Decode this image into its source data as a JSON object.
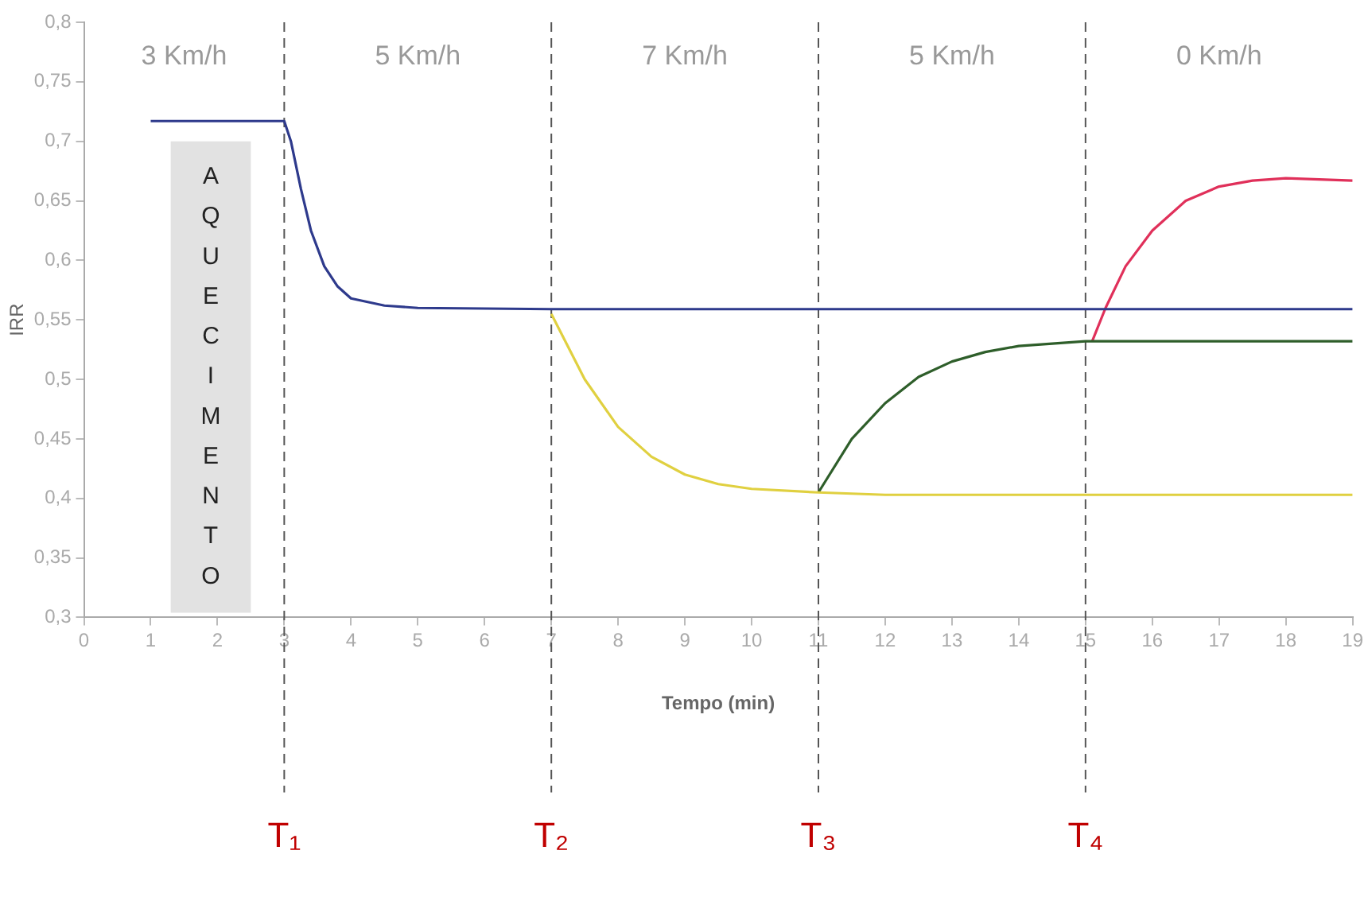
{
  "chart_data": {
    "type": "line",
    "xlabel": "Tempo (min)",
    "ylabel": "IRR",
    "xlim": [
      0,
      19
    ],
    "xticks": [
      0,
      1,
      2,
      3,
      4,
      5,
      6,
      7,
      8,
      9,
      10,
      11,
      12,
      13,
      14,
      15,
      16,
      17,
      18,
      19
    ],
    "ylim": [
      0.3,
      0.8
    ],
    "yticks": [
      {
        "value": 0.3,
        "label": "0,3"
      },
      {
        "value": 0.35,
        "label": "0,35"
      },
      {
        "value": 0.4,
        "label": "0,4"
      },
      {
        "value": 0.45,
        "label": "0,45"
      },
      {
        "value": 0.5,
        "label": "0,5"
      },
      {
        "value": 0.55,
        "label": "0,55"
      },
      {
        "value": 0.6,
        "label": "0,6"
      },
      {
        "value": 0.65,
        "label": "0,65"
      },
      {
        "value": 0.7,
        "label": "0,7"
      },
      {
        "value": 0.75,
        "label": "0,75"
      },
      {
        "value": 0.8,
        "label": "0,8"
      }
    ],
    "grid": false,
    "legend": false,
    "marker": "none",
    "line_style": "solid",
    "series": [
      {
        "color": "#2e3a8c",
        "x": [
          1,
          3,
          3.1,
          3.25,
          3.4,
          3.6,
          3.8,
          4,
          4.5,
          5,
          7,
          19
        ],
        "values": [
          0.717,
          0.717,
          0.7,
          0.66,
          0.625,
          0.595,
          0.578,
          0.568,
          0.562,
          0.56,
          0.559,
          0.559
        ]
      },
      {
        "color": "#e0d040",
        "x": [
          7,
          7.5,
          8,
          8.5,
          9,
          9.5,
          10,
          11,
          12,
          19
        ],
        "values": [
          0.555,
          0.5,
          0.46,
          0.435,
          0.42,
          0.412,
          0.408,
          0.405,
          0.403,
          0.403
        ]
      },
      {
        "color": "#2e5e2a",
        "x": [
          11,
          11.5,
          12,
          12.5,
          13,
          13.5,
          14,
          15,
          19
        ],
        "values": [
          0.405,
          0.45,
          0.48,
          0.502,
          0.515,
          0.523,
          0.528,
          0.532,
          0.532
        ]
      },
      {
        "color": "#e0305a",
        "x": [
          15.1,
          15.3,
          15.6,
          16,
          16.5,
          17,
          17.5,
          18,
          19
        ],
        "values": [
          0.532,
          0.56,
          0.595,
          0.625,
          0.65,
          0.662,
          0.667,
          0.669,
          0.667
        ]
      }
    ],
    "ref_lines": [
      {
        "axis": "x",
        "value": 3,
        "label": "T₁",
        "color": "#555555",
        "line_style": "dashed"
      },
      {
        "axis": "x",
        "value": 7,
        "label": "T₂",
        "color": "#555555",
        "line_style": "dashed"
      },
      {
        "axis": "x",
        "value": 11,
        "label": "T₃",
        "color": "#555555",
        "line_style": "dashed"
      },
      {
        "axis": "x",
        "value": 15,
        "label": "T₄",
        "color": "#555555",
        "line_style": "dashed"
      }
    ],
    "bands": [
      {
        "axis": "x",
        "from": 1.3,
        "to": 2.5,
        "label": "AQUECIMENTO",
        "color": "#e2e2e2"
      }
    ],
    "annotations": [
      "3 Km/h",
      "5 Km/h",
      "7 Km/h",
      "5 Km/h",
      "0 Km/h"
    ]
  }
}
